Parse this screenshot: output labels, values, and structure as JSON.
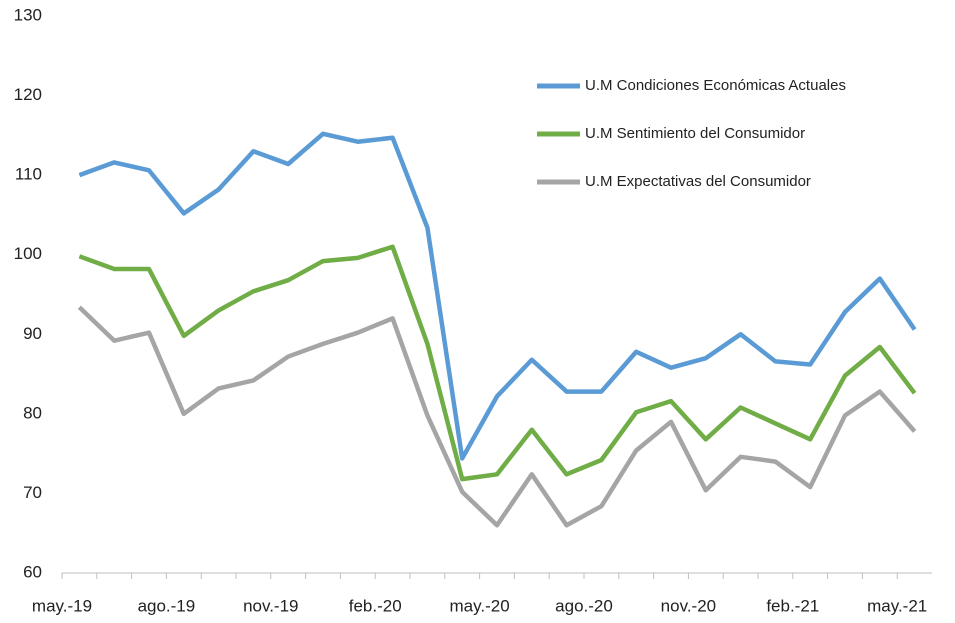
{
  "chart_data": {
    "type": "line",
    "categories": [
      "may.-19",
      null,
      null,
      "ago.-19",
      null,
      null,
      "nov.-19",
      null,
      null,
      "feb.-20",
      null,
      null,
      "may.-20",
      null,
      null,
      "ago.-20",
      null,
      null,
      "nov.-20",
      null,
      null,
      "feb.-21",
      null,
      null,
      "may.-21"
    ],
    "series": [
      {
        "name": "U.M Condiciones Económicas Actuales",
        "color": "#5b9bd5",
        "values": [
          110,
          111.6,
          110.6,
          105.2,
          108.2,
          113,
          111.4,
          115.2,
          114.2,
          114.7,
          103.4,
          74.4,
          82.2,
          86.8,
          82.8,
          82.8,
          87.8,
          85.8,
          87,
          90,
          86.6,
          86.2,
          92.8,
          97,
          90.6
        ]
      },
      {
        "name": "U.M Sentimiento del Consumidor",
        "color": "#70ad47",
        "values": [
          99.8,
          98.2,
          98.2,
          89.8,
          93,
          95.4,
          96.8,
          99.2,
          99.6,
          101,
          88.8,
          71.8,
          72.4,
          78,
          72.4,
          74.2,
          80.2,
          81.6,
          76.8,
          80.8,
          78.8,
          76.8,
          84.8,
          88.4,
          82.6
        ]
      },
      {
        "name": "U.M Expectativas del Consumidor",
        "color": "#a5a5a5",
        "values": [
          93.4,
          89.2,
          90.2,
          80,
          83.2,
          84.2,
          87.2,
          88.8,
          90.2,
          92,
          79.8,
          70.2,
          66,
          72.4,
          66,
          68.4,
          75.4,
          79,
          70.4,
          74.6,
          74,
          70.8,
          79.8,
          82.8,
          77.8
        ]
      }
    ],
    "ylim": [
      60,
      130
    ],
    "yticks": [
      60,
      70,
      80,
      90,
      100,
      110,
      120,
      130
    ],
    "grid": false
  }
}
